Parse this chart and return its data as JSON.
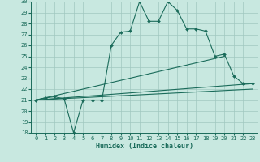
{
  "xlabel": "Humidex (Indice chaleur)",
  "xlim": [
    -0.5,
    23.5
  ],
  "ylim": [
    18,
    30
  ],
  "xticks": [
    0,
    1,
    2,
    3,
    4,
    5,
    6,
    7,
    8,
    9,
    10,
    11,
    12,
    13,
    14,
    15,
    16,
    17,
    18,
    19,
    20,
    21,
    22,
    23
  ],
  "yticks": [
    18,
    19,
    20,
    21,
    22,
    23,
    24,
    25,
    26,
    27,
    28,
    29,
    30
  ],
  "background_color": "#c8e8e0",
  "line_color": "#1a6b5a",
  "grid_color": "#a0c8c0",
  "main_line": {
    "x": [
      0,
      1,
      2,
      3,
      4,
      5,
      6,
      7,
      8,
      9,
      10,
      11,
      12,
      13,
      14,
      15,
      16,
      17,
      18,
      19,
      20,
      21,
      22,
      23
    ],
    "y": [
      21,
      21.2,
      21.3,
      21.1,
      18,
      21,
      21,
      21,
      26,
      27.2,
      27.3,
      30,
      28.2,
      28.2,
      30,
      29.2,
      27.5,
      27.5,
      27.3,
      25,
      25.2,
      23.2,
      22.5,
      22.5
    ]
  },
  "straight_lines": [
    {
      "x": [
        0,
        20
      ],
      "y": [
        21,
        25
      ]
    },
    {
      "x": [
        0,
        23
      ],
      "y": [
        21,
        22.5
      ]
    },
    {
      "x": [
        0,
        23
      ],
      "y": [
        21,
        22.0
      ]
    }
  ]
}
